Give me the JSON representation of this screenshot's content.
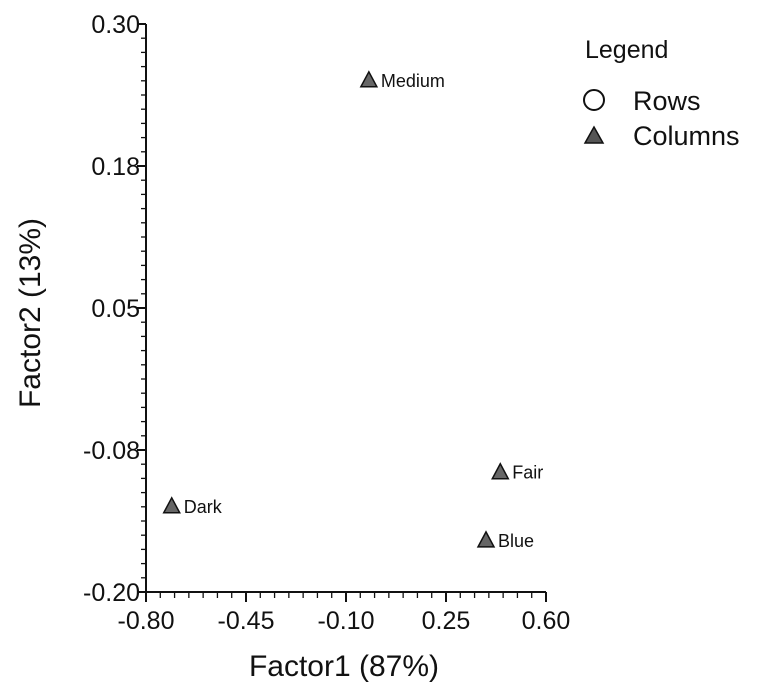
{
  "chart_data": {
    "type": "scatter",
    "xlabel": "Factor1 (87%)",
    "ylabel": "Factor2 (13%)",
    "xlim": [
      -0.8,
      0.6
    ],
    "ylim": [
      -0.2,
      0.3
    ],
    "x_ticks": [
      "-0.80",
      "-0.45",
      "-0.10",
      "0.25",
      "0.60"
    ],
    "y_ticks": [
      "0.30",
      "0.18",
      "0.05",
      "-0.08",
      "-0.20"
    ],
    "series": [
      {
        "name": "Columns",
        "marker": "triangle",
        "points": [
          {
            "label": "Medium",
            "x": -0.02,
            "y": 0.25
          },
          {
            "label": "Fair",
            "x": 0.44,
            "y": -0.095
          },
          {
            "label": "Dark",
            "x": -0.71,
            "y": -0.125
          },
          {
            "label": "Blue",
            "x": 0.39,
            "y": -0.155
          }
        ]
      }
    ],
    "legend": {
      "title": "Legend",
      "placement": "top-right",
      "entries": [
        {
          "name": "Rows",
          "marker": "circle"
        },
        {
          "name": "Columns",
          "marker": "triangle"
        }
      ]
    },
    "grid": false
  }
}
